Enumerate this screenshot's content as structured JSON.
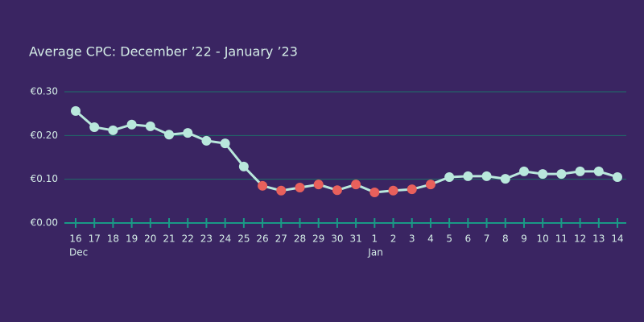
{
  "chart_data": {
    "type": "line",
    "title": "Average CPC: December ’22 - January ’23",
    "categories": [
      "16",
      "17",
      "18",
      "19",
      "20",
      "21",
      "22",
      "23",
      "24",
      "25",
      "26",
      "27",
      "28",
      "29",
      "30",
      "31",
      "1",
      "2",
      "3",
      "4",
      "5",
      "6",
      "7",
      "8",
      "9",
      "10",
      "11",
      "12",
      "13",
      "14"
    ],
    "months": [
      "Dec",
      null,
      null,
      null,
      null,
      null,
      null,
      null,
      null,
      null,
      null,
      null,
      null,
      null,
      null,
      null,
      "Jan",
      null,
      null,
      null,
      null,
      null,
      null,
      null,
      null,
      null,
      null,
      null,
      null,
      null
    ],
    "series": [
      {
        "color": "#b9e8dc",
        "values": [
          0.256,
          0.219,
          0.212,
          0.225,
          0.221,
          0.202,
          0.206,
          0.188,
          0.182,
          0.129,
          0.085,
          0.074,
          0.081,
          0.088,
          0.075,
          0.088,
          0.07,
          0.074,
          0.077,
          0.088,
          0.105,
          0.107,
          0.107,
          0.101,
          0.118,
          0.112,
          0.112,
          0.118,
          0.118,
          0.105
        ],
        "point_colors": [
          "#b9e8dc",
          "#b9e8dc",
          "#b9e8dc",
          "#b9e8dc",
          "#b9e8dc",
          "#b9e8dc",
          "#b9e8dc",
          "#b9e8dc",
          "#b9e8dc",
          "#b9e8dc",
          "#e8605c",
          "#e8605c",
          "#e8605c",
          "#e8605c",
          "#e8605c",
          "#e8605c",
          "#e8605c",
          "#e8605c",
          "#e8605c",
          "#e8605c",
          "#b9e8dc",
          "#b9e8dc",
          "#b9e8dc",
          "#b9e8dc",
          "#b9e8dc",
          "#b9e8dc",
          "#b9e8dc",
          "#b9e8dc",
          "#b9e8dc",
          "#b9e8dc"
        ]
      }
    ],
    "ylim": [
      0,
      0.3
    ],
    "yticks": [
      {
        "value": 0,
        "label": "€0.00"
      },
      {
        "value": 0.1,
        "label": "€0.10"
      },
      {
        "value": 0.2,
        "label": "€0.20"
      },
      {
        "value": 0.3,
        "label": "€0.30"
      }
    ],
    "grid": true
  }
}
